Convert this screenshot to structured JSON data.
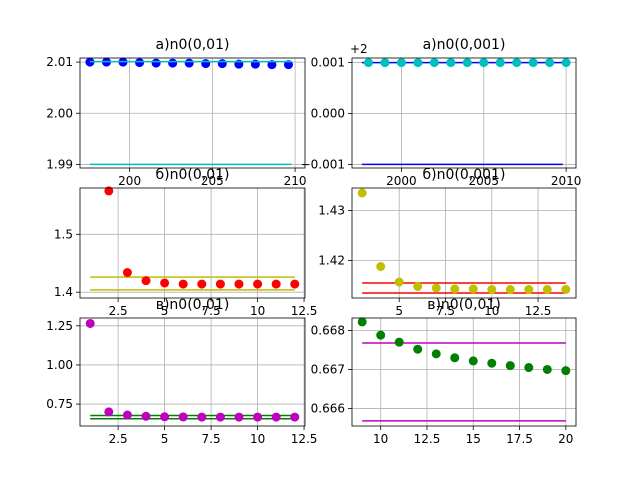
{
  "chart_data": [
    {
      "type": "scatter",
      "title": "a)n0(0,01)",
      "xlim": [
        197,
        210.6
      ],
      "ylim": [
        1.9893,
        2.0108
      ],
      "xticks": [
        200,
        205,
        210
      ],
      "yticks": [
        1.99,
        2.0,
        2.01
      ],
      "ytick_labels": [
        "1.99",
        "2.00",
        "2.01"
      ],
      "grid": true,
      "offset_text": "",
      "series": [
        {
          "kind": "points",
          "color": "#0000ff",
          "x": [
            197.6,
            198.6,
            199.6,
            200.6,
            201.6,
            202.6,
            203.6,
            204.6,
            205.6,
            206.6,
            207.6,
            208.6,
            209.6
          ],
          "y": [
            2.01,
            2.01,
            2.01,
            2.0099,
            2.0098,
            2.0098,
            2.0098,
            2.0097,
            2.0097,
            2.0096,
            2.0096,
            2.0095,
            2.0095
          ]
        },
        {
          "kind": "hline",
          "color": "#00bfbf",
          "x": [
            197.6,
            209.8
          ],
          "y": 2.0101
        },
        {
          "kind": "hline",
          "color": "#00bfbf",
          "x": [
            197.6,
            209.8
          ],
          "y": 1.99
        }
      ]
    },
    {
      "type": "scatter",
      "title": "a)n0(0,001)",
      "xlim": [
        1997,
        2010.6
      ],
      "ylim": [
        -0.00107,
        0.00109
      ],
      "xticks": [
        2000,
        2005,
        2010
      ],
      "yticks": [
        -0.001,
        0.0,
        0.001
      ],
      "ytick_labels": [
        "−0.001",
        "0.000",
        "0.001"
      ],
      "grid": true,
      "offset_text": "+2",
      "series": [
        {
          "kind": "hline",
          "color": "#0000ff",
          "x": [
            1997.6,
            2009.8
          ],
          "y": 0.001
        },
        {
          "kind": "hline",
          "color": "#0000ff",
          "x": [
            1997.6,
            2009.8
          ],
          "y": -0.001
        },
        {
          "kind": "points",
          "color": "#00bfbf",
          "x": [
            1998,
            1999,
            2000,
            2001,
            2002,
            2003,
            2004,
            2005,
            2006,
            2007,
            2008,
            2009,
            2010
          ],
          "y": [
            0.001,
            0.001,
            0.001,
            0.001,
            0.001,
            0.001,
            0.001,
            0.001,
            0.001,
            0.001,
            0.001,
            0.001,
            0.001
          ]
        }
      ]
    },
    {
      "type": "scatter",
      "title": "б)n0(0,01)",
      "xlim": [
        0.45,
        12.55
      ],
      "ylim": [
        1.39,
        1.58
      ],
      "xticks": [
        2.5,
        5.0,
        7.5,
        10.0,
        12.5
      ],
      "yticks": [
        1.4,
        1.5
      ],
      "ytick_labels": [
        "1.4",
        "1.5"
      ],
      "grid": true,
      "offset_text": "",
      "series": [
        {
          "kind": "hline",
          "color": "#bfbf00",
          "x": [
            1,
            12
          ],
          "y": 1.426
        },
        {
          "kind": "hline",
          "color": "#bfbf00",
          "x": [
            1,
            12
          ],
          "y": 1.404
        },
        {
          "kind": "points",
          "color": "#ff0000",
          "x": [
            2,
            3,
            4,
            5,
            6,
            7,
            8,
            9,
            10,
            11,
            12
          ],
          "y": [
            1.575,
            1.434,
            1.42,
            1.416,
            1.414,
            1.414,
            1.414,
            1.414,
            1.414,
            1.414,
            1.414
          ]
        }
      ]
    },
    {
      "type": "scatter",
      "title": "б)n0(0,001)",
      "xlim": [
        2.45,
        14.55
      ],
      "ylim": [
        1.4125,
        1.4345
      ],
      "xticks": [
        5.0,
        7.5,
        10.0,
        12.5
      ],
      "yticks": [
        1.42,
        1.43
      ],
      "ytick_labels": [
        "1.42",
        "1.43"
      ],
      "grid": true,
      "offset_text": "",
      "series": [
        {
          "kind": "hline",
          "color": "#ff0000",
          "x": [
            3,
            14
          ],
          "y": 1.4155
        },
        {
          "kind": "hline",
          "color": "#ff0000",
          "x": [
            3,
            14
          ],
          "y": 1.4135
        },
        {
          "kind": "points",
          "color": "#bfbf00",
          "x": [
            3,
            4,
            5,
            6,
            7,
            8,
            9,
            10,
            11,
            12,
            13,
            14
          ],
          "y": [
            1.4335,
            1.4188,
            1.4157,
            1.4148,
            1.4145,
            1.4143,
            1.4143,
            1.4142,
            1.4142,
            1.4142,
            1.4142,
            1.4142
          ]
        }
      ]
    },
    {
      "type": "scatter",
      "title": "в)n0(0,01)",
      "xlim": [
        0.45,
        12.55
      ],
      "ylim": [
        0.61,
        1.3
      ],
      "xticks": [
        2.5,
        5.0,
        7.5,
        10.0,
        12.5
      ],
      "yticks": [
        0.75,
        1.0,
        1.25
      ],
      "ytick_labels": [
        "0.75",
        "1.00",
        "1.25"
      ],
      "grid": true,
      "offset_text": "",
      "series": [
        {
          "kind": "hline",
          "color": "#007f00",
          "x": [
            1,
            12
          ],
          "y": 0.677
        },
        {
          "kind": "hline",
          "color": "#007f00",
          "x": [
            1,
            12
          ],
          "y": 0.656
        },
        {
          "kind": "points",
          "color": "#bf00bf",
          "x": [
            1,
            2,
            3,
            4,
            5,
            6,
            7,
            8,
            9,
            10,
            11,
            12
          ],
          "y": [
            1.265,
            0.7,
            0.68,
            0.672,
            0.669,
            0.668,
            0.667,
            0.667,
            0.667,
            0.667,
            0.667,
            0.667
          ]
        }
      ]
    },
    {
      "type": "scatter",
      "title": "в)n0(0,01)",
      "xlim": [
        8.45,
        20.55
      ],
      "ylim": [
        0.66555,
        0.66832
      ],
      "xticks": [
        10.0,
        12.5,
        15.0,
        17.5,
        20.0
      ],
      "yticks": [
        0.666,
        0.667,
        0.668
      ],
      "ytick_labels": [
        "0.666",
        "0.667",
        "0.668"
      ],
      "grid": true,
      "offset_text": "",
      "series": [
        {
          "kind": "hline",
          "color": "#bf00bf",
          "x": [
            9,
            20
          ],
          "y": 0.66768
        },
        {
          "kind": "hline",
          "color": "#bf00bf",
          "x": [
            9,
            20
          ],
          "y": 0.66568
        },
        {
          "kind": "points",
          "color": "#007f00",
          "x": [
            9,
            10,
            11,
            12,
            13,
            14,
            15,
            16,
            17,
            18,
            19,
            20
          ],
          "y": [
            0.66822,
            0.66788,
            0.6677,
            0.66752,
            0.6674,
            0.6673,
            0.66722,
            0.66716,
            0.6671,
            0.66705,
            0.667,
            0.66697
          ]
        }
      ]
    }
  ]
}
